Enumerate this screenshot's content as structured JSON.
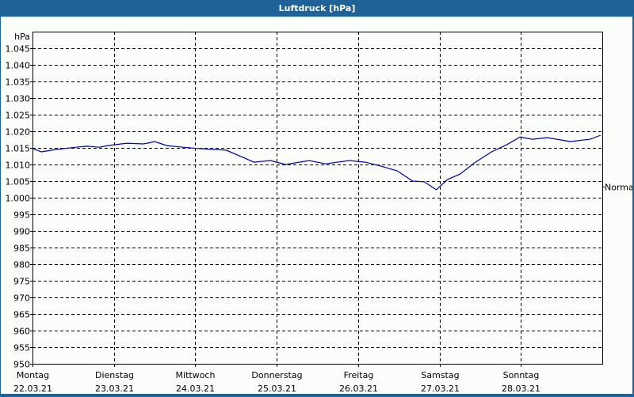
{
  "window": {
    "title": "Luftdruck [hPa]"
  },
  "chart_data": {
    "type": "line",
    "title": "Luftdruck [hPa]",
    "ylabel": "hPa",
    "xlabel": "",
    "ylim": [
      950,
      1047
    ],
    "yticks": [
      950,
      955,
      960,
      965,
      970,
      975,
      980,
      985,
      990,
      995,
      1000,
      1005,
      1010,
      1015,
      1020,
      1025,
      1030,
      1035,
      1040,
      1045
    ],
    "ytick_labels": [
      "950",
      "955",
      "960",
      "965",
      "970",
      "975",
      "980",
      "985",
      "990",
      "995",
      "1.000",
      "1.005",
      "1.010",
      "1.015",
      "1.020",
      "1.025",
      "1.030",
      "1.035",
      "1.040",
      "1.045"
    ],
    "x_categories": [
      {
        "day": "Montag",
        "date": "22.03.21"
      },
      {
        "day": "Dienstag",
        "date": "23.03.21"
      },
      {
        "day": "Mittwoch",
        "date": "24.03.21"
      },
      {
        "day": "Donnerstag",
        "date": "25.03.21"
      },
      {
        "day": "Freitag",
        "date": "26.03.21"
      },
      {
        "day": "Samstag",
        "date": "27.03.21"
      },
      {
        "day": "Sonntag",
        "date": "28.03.21"
      }
    ],
    "reference_line": {
      "label": "Normal",
      "value": 1003.3
    },
    "grid": true,
    "series": [
      {
        "name": "Luftdruck",
        "color": "#0000b0",
        "x_days": [
          0,
          0.11,
          0.28,
          0.53,
          0.67,
          0.82,
          0.92,
          1.16,
          1.36,
          1.41,
          1.5,
          1.65,
          1.85,
          2.04,
          2.38,
          2.63,
          2.72,
          2.92,
          3.11,
          3.4,
          3.6,
          3.89,
          4.09,
          4.28,
          4.48,
          4.67,
          4.81,
          4.96,
          5.1,
          5.25,
          5.44,
          5.64,
          5.83,
          5.99,
          6.14,
          6.32,
          6.61,
          6.85,
          6.98
        ],
        "values": [
          1014.8,
          1013.8,
          1014.5,
          1015.2,
          1015.5,
          1015.2,
          1015.7,
          1016.4,
          1016.2,
          1016.4,
          1016.9,
          1015.7,
          1015.2,
          1014.8,
          1014.3,
          1011.7,
          1010.7,
          1011.2,
          1010.0,
          1011.2,
          1010.2,
          1011.2,
          1010.7,
          1009.5,
          1008.1,
          1005.0,
          1004.8,
          1002.4,
          1005.5,
          1007.1,
          1010.7,
          1013.8,
          1016.0,
          1018.3,
          1017.6,
          1018.1,
          1016.9,
          1017.6,
          1018.8
        ]
      }
    ]
  }
}
